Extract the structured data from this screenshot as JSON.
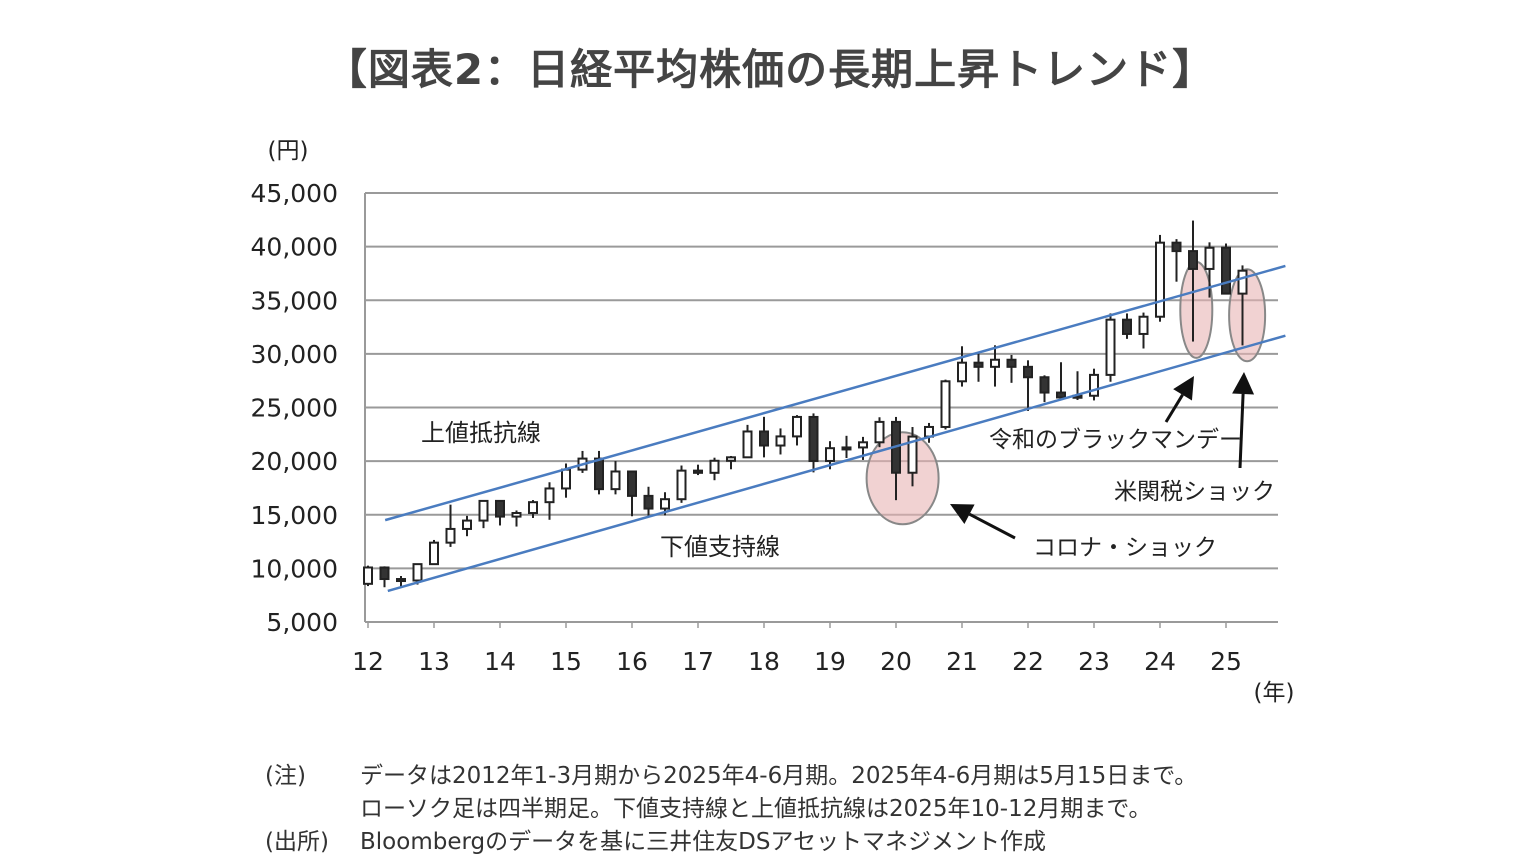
{
  "title": "【図表2：日経平均株価の長期上昇トレンド】",
  "chart_data": {
    "type": "candlestick",
    "title": "【図表2：日経平均株価の長期上昇トレンド】",
    "ylabel": "(円)",
    "xlabel": "(年)",
    "ylim": [
      5000,
      45000
    ],
    "yticks": [
      5000,
      10000,
      15000,
      20000,
      25000,
      30000,
      35000,
      40000,
      45000
    ],
    "ytick_labels": [
      "5,000",
      "10,000",
      "15,000",
      "20,000",
      "25,000",
      "30,000",
      "35,000",
      "40,000",
      "45,000"
    ],
    "xticks": [
      12,
      13,
      14,
      15,
      16,
      17,
      18,
      19,
      20,
      21,
      22,
      23,
      24,
      25
    ],
    "xtick_labels": [
      "12",
      "13",
      "14",
      "15",
      "16",
      "17",
      "18",
      "19",
      "20",
      "21",
      "22",
      "23",
      "24",
      "25"
    ],
    "grid": "horizontal",
    "period": "quarterly",
    "ohlc": [
      [
        8560,
        10255,
        8350,
        10083
      ],
      [
        10083,
        10190,
        8240,
        9007
      ],
      [
        9007,
        9290,
        8300,
        8870
      ],
      [
        8870,
        10430,
        8490,
        10395
      ],
      [
        10395,
        12650,
        10400,
        12398
      ],
      [
        12398,
        15940,
        12000,
        13677
      ],
      [
        13677,
        14900,
        13000,
        14456
      ],
      [
        14456,
        16320,
        13750,
        16291
      ],
      [
        16291,
        16320,
        14000,
        14828
      ],
      [
        14828,
        15400,
        13900,
        15162
      ],
      [
        15162,
        16370,
        14700,
        16174
      ],
      [
        16174,
        18030,
        14530,
        17451
      ],
      [
        17451,
        19780,
        16590,
        19207
      ],
      [
        19207,
        20950,
        18900,
        20236
      ],
      [
        20236,
        20950,
        16900,
        17388
      ],
      [
        17388,
        20010,
        16900,
        19034
      ],
      [
        19034,
        19090,
        14860,
        16759
      ],
      [
        16759,
        17610,
        14860,
        15576
      ],
      [
        15576,
        17100,
        14950,
        16450
      ],
      [
        16450,
        19590,
        16110,
        19114
      ],
      [
        19114,
        19670,
        18700,
        18909
      ],
      [
        18909,
        20320,
        18220,
        20033
      ],
      [
        20033,
        20480,
        19240,
        20356
      ],
      [
        20356,
        23380,
        20300,
        22765
      ],
      [
        22765,
        24130,
        20350,
        21454
      ],
      [
        21454,
        23050,
        20620,
        22305
      ],
      [
        22305,
        24290,
        21460,
        24120
      ],
      [
        24120,
        24450,
        18950,
        20015
      ],
      [
        20015,
        21860,
        19240,
        21206
      ],
      [
        21206,
        22360,
        20290,
        21276
      ],
      [
        21276,
        22260,
        20110,
        21756
      ],
      [
        21756,
        24090,
        21300,
        23657
      ],
      [
        23657,
        24120,
        16360,
        18917
      ],
      [
        18917,
        23180,
        17650,
        22288
      ],
      [
        22288,
        23560,
        21710,
        23185
      ],
      [
        23185,
        27600,
        22950,
        27444
      ],
      [
        27444,
        30710,
        26950,
        29179
      ],
      [
        29179,
        30200,
        27400,
        28792
      ],
      [
        28792,
        30800,
        26950,
        29453
      ],
      [
        29453,
        29900,
        27300,
        28792
      ],
      [
        28792,
        29400,
        24680,
        27821
      ],
      [
        27821,
        28000,
        25500,
        26393
      ],
      [
        26393,
        29220,
        25900,
        25937
      ],
      [
        25937,
        28380,
        25700,
        26095
      ],
      [
        26095,
        28620,
        25660,
        28041
      ],
      [
        28041,
        33770,
        27400,
        33189
      ],
      [
        33189,
        33770,
        31400,
        31858
      ],
      [
        31858,
        33850,
        30500,
        33464
      ],
      [
        33464,
        41090,
        33000,
        40369
      ],
      [
        40369,
        40700,
        36730,
        39583
      ],
      [
        39583,
        42430,
        31150,
        37919
      ],
      [
        37919,
        40400,
        35250,
        39894
      ],
      [
        39894,
        40290,
        35600,
        35617
      ],
      [
        35617,
        38250,
        30790,
        37755
      ]
    ],
    "trend_lines": [
      {
        "name": "上値抵抗線",
        "start": [
          12.26,
          14500
        ],
        "end": [
          25.9,
          38200
        ]
      },
      {
        "name": "下値支持線",
        "start": [
          12.3,
          7900
        ],
        "end": [
          25.9,
          31700
        ]
      }
    ],
    "annotations": [
      {
        "text": "コロナ・ショック",
        "highlight": [
          20.1,
          18400
        ]
      },
      {
        "text": "令和のブラックマンデー",
        "highlight": [
          24.55,
          34100
        ]
      },
      {
        "text": "米関税ショック",
        "highlight": [
          25.32,
          33600
        ]
      }
    ],
    "colors": {
      "trend": "#4a7cc0",
      "highlight": "#e8b4b4",
      "grid": "#9a9a9a",
      "candle": "#222222"
    }
  },
  "notes": {
    "note_label": "(注)",
    "note_line1": "データは2012年1-3月期から2025年4-6月期。2025年4-6月期は5月15日まで。",
    "note_line2": "ローソク足は四半期足。下値支持線と上値抵抗線は2025年10-12月期まで。",
    "source_label": "(出所)",
    "source_text": "Bloombergのデータを基に三井住友DSアセットマネジメント作成"
  }
}
